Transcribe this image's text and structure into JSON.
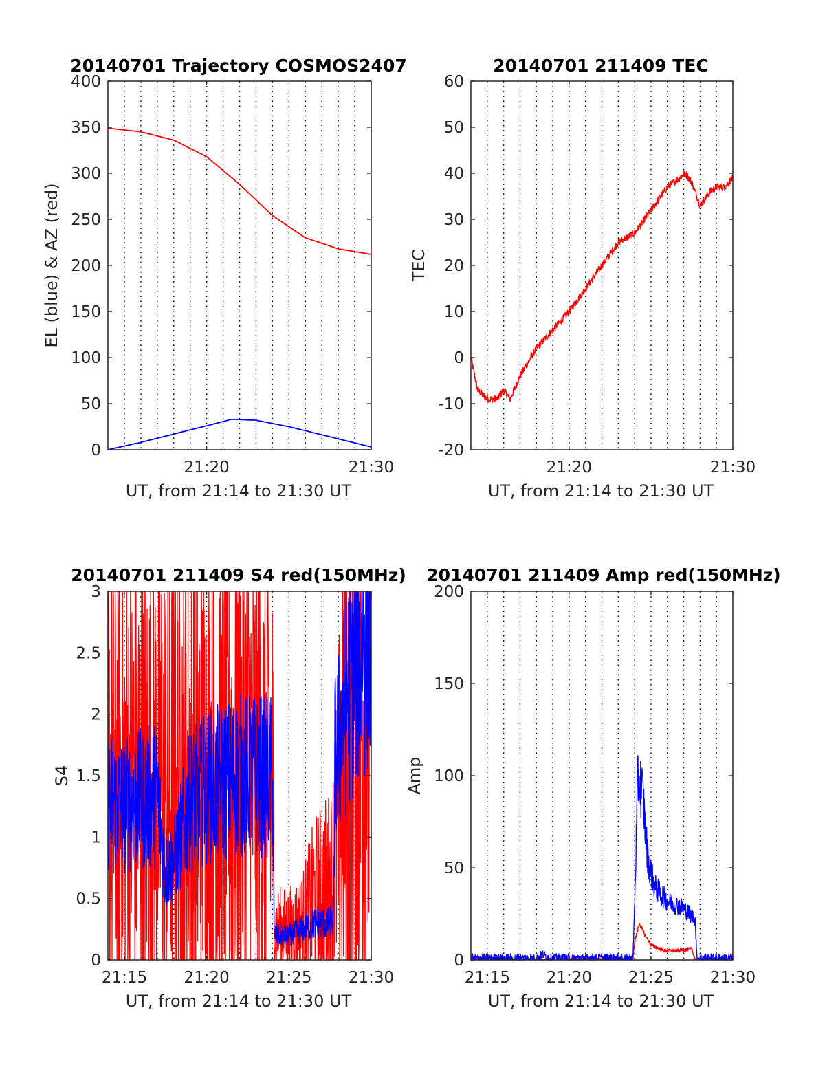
{
  "figure": {
    "colors": {
      "red_trace": "#ff0000",
      "blue_trace": "#0000ff",
      "axes": "#262626",
      "grid": "#000000"
    }
  },
  "chart_data": [
    {
      "type": "line",
      "title": "20140701 Trajectory COSMOS2407",
      "xlabel": "UT, from 21:14 to 21:30 UT",
      "ylabel": "EL (blue) & AZ (red)",
      "xlim": [
        21.2333,
        21.5
      ],
      "ylim": [
        0,
        400
      ],
      "x_ticks": [
        21.3333,
        21.5
      ],
      "x_tick_labels": [
        "21:20",
        "21:30"
      ],
      "y_ticks": [
        0,
        50,
        100,
        150,
        200,
        250,
        300,
        350,
        400
      ],
      "y_tick_labels": [
        "0",
        "50",
        "100",
        "150",
        "200",
        "250",
        "300",
        "350",
        "400"
      ],
      "grid": "dotted vertical every minute",
      "series": [
        {
          "color": "red",
          "noise": 0,
          "x": [
            21.2333,
            21.2667,
            21.3,
            21.3333,
            21.3667,
            21.4,
            21.4333,
            21.4667,
            21.5
          ],
          "y": [
            349,
            345,
            336,
            318,
            288,
            254,
            230,
            218,
            212
          ]
        },
        {
          "color": "blue",
          "noise": 0,
          "x": [
            21.2333,
            21.2667,
            21.3,
            21.3333,
            21.3583,
            21.3833,
            21.4167,
            21.4583,
            21.5
          ],
          "y": [
            0,
            8,
            17,
            26,
            33,
            32,
            25,
            14,
            3
          ]
        }
      ]
    },
    {
      "type": "line",
      "title": "20140701 211409 TEC",
      "xlabel": "UT, from 21:14 to 21:30 UT",
      "ylabel": "TEC",
      "xlim": [
        21.2333,
        21.5
      ],
      "ylim": [
        -20,
        60
      ],
      "x_ticks": [
        21.3333,
        21.5
      ],
      "x_tick_labels": [
        "21:20",
        "21:30"
      ],
      "y_ticks": [
        -20,
        -10,
        0,
        10,
        20,
        30,
        40,
        50,
        60
      ],
      "y_tick_labels": [
        "-20",
        "-10",
        "0",
        "10",
        "20",
        "30",
        "40",
        "50",
        "60"
      ],
      "grid": "dotted vertical every minute",
      "series": [
        {
          "color": "red",
          "noise": 0.8,
          "x": [
            21.2333,
            21.24,
            21.25,
            21.26,
            21.2667,
            21.2733,
            21.2833,
            21.3,
            21.3167,
            21.3333,
            21.35,
            21.3667,
            21.3833,
            21.4,
            21.4167,
            21.4333,
            21.4517,
            21.4583,
            21.4667,
            21.4767,
            21.4833,
            21.4917,
            21.5
          ],
          "y": [
            0,
            -7,
            -9,
            -9,
            -7,
            -9,
            -4,
            2,
            6,
            10,
            15,
            20,
            25,
            27,
            32,
            37,
            40,
            38,
            33,
            36,
            37,
            37,
            39
          ]
        }
      ]
    },
    {
      "type": "line",
      "title": "20140701 211409 S4 red(150MHz)",
      "xlabel": "UT, from 21:14 to 21:30 UT",
      "ylabel": "S4",
      "xlim": [
        21.2333,
        21.5
      ],
      "ylim": [
        0,
        3
      ],
      "x_ticks": [
        21.25,
        21.3333,
        21.4167,
        21.5
      ],
      "x_tick_labels": [
        "21:15",
        "21:20",
        "21:25",
        "21:30"
      ],
      "y_ticks": [
        0,
        0.5,
        1,
        1.5,
        2,
        2.5,
        3
      ],
      "y_tick_labels": [
        "0",
        "0.5",
        "1",
        "1.5",
        "2",
        "2.5",
        "3"
      ],
      "grid": "dotted vertical every minute",
      "series": [
        {
          "color": "red",
          "noise": 1.4,
          "clip": true,
          "x": [
            21.2333,
            21.3667,
            21.3683,
            21.4,
            21.4017,
            21.4167,
            21.43,
            21.4433,
            21.46,
            21.4767,
            21.49,
            21.5
          ],
          "y": [
            1.4,
            1.5,
            1.6,
            1.4,
            0.25,
            0.25,
            0.3,
            0.5,
            0.6,
            1.8,
            2.0,
            2.2
          ]
        },
        {
          "color": "blue",
          "noise": 0.45,
          "clip": true,
          "x": [
            21.2333,
            21.25,
            21.2667,
            21.2833,
            21.2917,
            21.3,
            21.3167,
            21.3333,
            21.35,
            21.3667,
            21.3833,
            21.4,
            21.4017,
            21.4167,
            21.43,
            21.4433,
            21.4617,
            21.4633,
            21.4767,
            21.49,
            21.5
          ],
          "y": [
            1.3,
            1.25,
            1.3,
            1.35,
            0.7,
            0.8,
            1.3,
            1.4,
            1.45,
            1.5,
            1.5,
            1.5,
            0.2,
            0.2,
            0.25,
            0.3,
            0.3,
            1.6,
            2.2,
            2.6,
            2.7
          ]
        }
      ]
    },
    {
      "type": "line",
      "title": "20140701 211409 Amp red(150MHz)",
      "xlabel": "UT, from 21:14 to 21:30 UT",
      "ylabel": "Amp",
      "xlim": [
        21.2333,
        21.5
      ],
      "ylim": [
        0,
        200
      ],
      "x_ticks": [
        21.25,
        21.3333,
        21.4167,
        21.5
      ],
      "x_tick_labels": [
        "21:15",
        "21:20",
        "21:25",
        "21:30"
      ],
      "y_ticks": [
        0,
        50,
        100,
        150,
        200
      ],
      "y_tick_labels": [
        "0",
        "50",
        "100",
        "150",
        "200"
      ],
      "grid": "dotted vertical every minute",
      "series": [
        {
          "color": "red",
          "noise": 5,
          "clip": true,
          "x": [
            21.2333,
            21.3983,
            21.4,
            21.405,
            21.41,
            21.4167,
            21.43,
            21.4433,
            21.4583,
            21.4617,
            21.5
          ],
          "y": [
            0,
            0,
            10,
            20,
            14,
            8,
            5,
            5,
            6,
            0,
            0
          ]
        },
        {
          "color": "blue",
          "noise": 12,
          "clip": true,
          "x": [
            21.2333,
            21.3,
            21.3067,
            21.3133,
            21.3983,
            21.4,
            21.4033,
            21.4083,
            21.4133,
            21.42,
            21.4333,
            21.45,
            21.4617,
            21.4633,
            21.5
          ],
          "y": [
            1,
            1,
            3,
            1,
            1,
            30,
            100,
            90,
            55,
            40,
            32,
            28,
            22,
            1,
            1
          ]
        }
      ]
    }
  ]
}
